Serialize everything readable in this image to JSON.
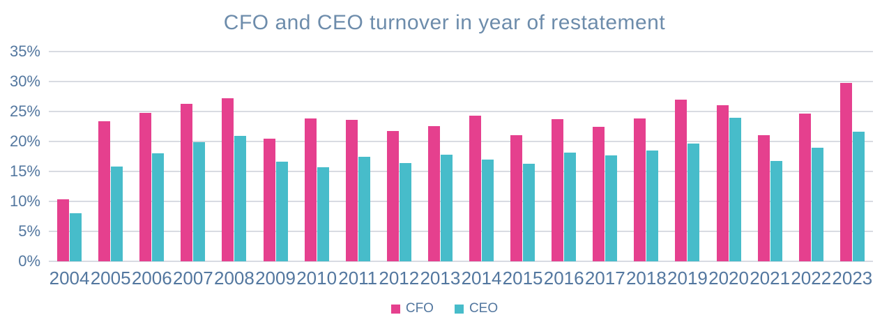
{
  "chart_data": {
    "type": "bar",
    "title": "CFO and CEO turnover in year of restatement",
    "categories": [
      "2004",
      "2005",
      "2006",
      "2007",
      "2008",
      "2009",
      "2010",
      "2011",
      "2012",
      "2013",
      "2014",
      "2015",
      "2016",
      "2017",
      "2018",
      "2019",
      "2020",
      "2021",
      "2022",
      "2023"
    ],
    "series": [
      {
        "name": "CFO",
        "color": "#e5408e",
        "values": [
          10.4,
          23.4,
          24.8,
          26.3,
          27.2,
          20.5,
          23.8,
          23.6,
          21.7,
          22.6,
          24.3,
          21.0,
          23.7,
          22.4,
          23.8,
          27.0,
          26.0,
          21.0,
          24.6,
          29.8
        ]
      },
      {
        "name": "CEO",
        "color": "#47bcca",
        "values": [
          8.0,
          15.8,
          18.0,
          19.9,
          20.9,
          16.6,
          15.7,
          17.4,
          16.4,
          17.8,
          17.0,
          16.3,
          18.1,
          17.7,
          18.5,
          19.6,
          24.0,
          16.7,
          19.0,
          21.6
        ]
      }
    ],
    "xlabel": "",
    "ylabel": "",
    "ylim": [
      0,
      35
    ],
    "ytick_step": 5,
    "ytick_labels": [
      "0%",
      "5%",
      "10%",
      "15%",
      "20%",
      "25%",
      "30%",
      "35%"
    ],
    "grid": "horizontal",
    "legend_position": "bottom",
    "colors": {
      "title_text": "#6d8cab",
      "axis_text": "#53779f",
      "gridline": "#d8dbe2",
      "background": "#ffffff"
    }
  }
}
